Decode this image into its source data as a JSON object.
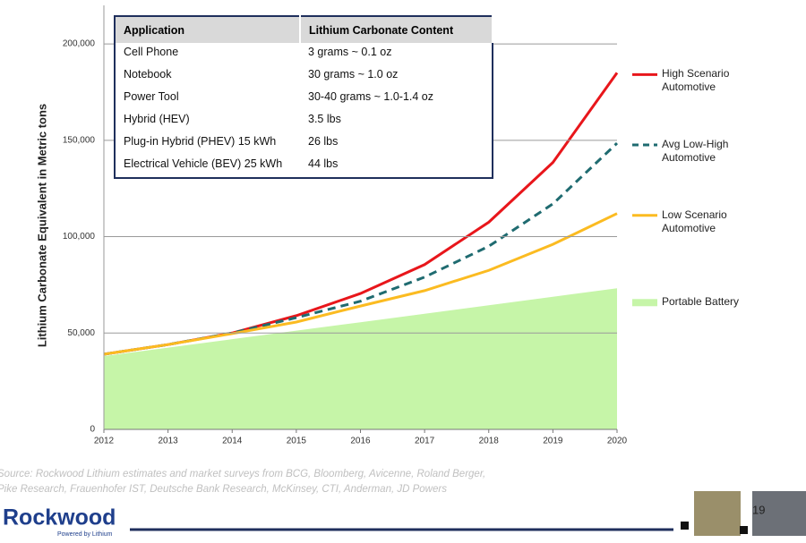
{
  "chart_data": {
    "type": "line",
    "y_label": "Lithium Carbonate Equivalent in Metric tons",
    "x": [
      2012,
      2013,
      2014,
      2015,
      2016,
      2017,
      2018,
      2019,
      2020
    ],
    "xlim": [
      2012,
      2020
    ],
    "xticks": [
      2012,
      2013,
      2014,
      2015,
      2016,
      2017,
      2018,
      2019,
      2020
    ],
    "ylim": [
      0,
      220000
    ],
    "yticks": [
      0,
      {
        "value": 50000,
        "label": "50,000"
      },
      {
        "value": 100000,
        "label": "100,000"
      },
      {
        "value": 150000,
        "label": "150,000"
      },
      {
        "value": 200000,
        "label": "200,000"
      }
    ],
    "grid": true,
    "legend": "right",
    "series": [
      {
        "name": "High Scenario Automotive",
        "color": "#e8161b",
        "kind": "line",
        "dashed": false,
        "values": [
          39000,
          44000,
          50000,
          59000,
          70500,
          85500,
          107500,
          138500,
          185000
        ]
      },
      {
        "name": "Avg Low-High Automotive",
        "color": "#1f6b70",
        "kind": "line",
        "dashed": true,
        "values": [
          39000,
          44000,
          50000,
          58000,
          66500,
          79000,
          95000,
          117000,
          148500
        ]
      },
      {
        "name": "Low Scenario Automotive",
        "color": "#fbbb21",
        "kind": "line",
        "dashed": false,
        "values": [
          39000,
          44000,
          49700,
          55700,
          64000,
          72000,
          82500,
          96000,
          112000
        ]
      },
      {
        "name": "Portable Battery",
        "color": "#c6f5a8",
        "kind": "area",
        "dashed": false,
        "values": [
          38000,
          42400,
          46800,
          51200,
          55600,
          60000,
          64400,
          68800,
          73200
        ]
      }
    ]
  },
  "table": {
    "header": [
      "Application",
      "Lithium Carbonate Content"
    ],
    "rows": [
      [
        "Cell Phone",
        "3 grams ~ 0.1 oz"
      ],
      [
        "Notebook",
        "30 grams ~ 1.0 oz"
      ],
      [
        "Power Tool",
        "30-40 grams ~ 1.0-1.4 oz"
      ],
      [
        "Hybrid (HEV)",
        "3.5 lbs"
      ],
      [
        "Plug-in Hybrid (PHEV) 15 kWh",
        "26 lbs"
      ],
      [
        "Electrical Vehicle (BEV) 25 kWh",
        "44 lbs"
      ]
    ]
  },
  "source": [
    "Source: Rockwood Lithium estimates and market surveys from BCG, Bloomberg, Avicenne, Roland Berger,",
    "Pike Research, Frauenhofer IST, Deutsche Bank Research, McKinsey, CTI, Anderman, JD Powers"
  ],
  "logo": {
    "name": "Rockwood",
    "tagline": "Powered by Lithium"
  },
  "page_number": "19"
}
